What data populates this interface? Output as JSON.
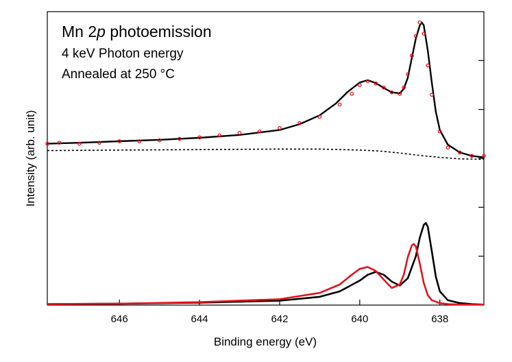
{
  "chart_data": {
    "type": "scatter",
    "title": {
      "prefix": "Mn 2",
      "italic": "p",
      "suffix": " photoemission"
    },
    "annotations": [
      "4 keV Photon energy",
      "Annealed at 250 °C"
    ],
    "xlabel": "Binding energy (eV)",
    "ylabel": "Intensity (arb. unit)",
    "xlim": [
      647.8,
      636.9
    ],
    "ylim": [
      0,
      6
    ],
    "x_reversed": true,
    "x_ticks": [
      646,
      644,
      642,
      640,
      638
    ],
    "x_tick_labels": [
      "646",
      "644",
      "642",
      "640",
      "638"
    ],
    "y_ticks": [
      1,
      2,
      3,
      4,
      5
    ],
    "y_tick_labels_shown": false,
    "grid": false,
    "colors": {
      "data_points": "#e0141e",
      "fit": "#000000",
      "background": "#000000",
      "component_black": "#000000",
      "component_red": "#e0141e"
    },
    "series": [
      {
        "kind": "points",
        "x": [
          647.8,
          647.5,
          647.0,
          646.5,
          646.0,
          645.5,
          645.0,
          644.5,
          644.0,
          643.5,
          643.0,
          642.5,
          642.0,
          641.5,
          641.0,
          640.5,
          640.2,
          640.0,
          639.8,
          639.6,
          639.4,
          639.2,
          639.0,
          638.9,
          638.8,
          638.7,
          638.6,
          638.5,
          638.4,
          638.3,
          638.2,
          638.0,
          637.8,
          637.5,
          637.2,
          636.9
        ],
        "y": [
          3.3,
          3.32,
          3.3,
          3.32,
          3.35,
          3.35,
          3.37,
          3.4,
          3.43,
          3.47,
          3.52,
          3.55,
          3.62,
          3.72,
          3.85,
          4.1,
          4.32,
          4.5,
          4.58,
          4.53,
          4.45,
          4.35,
          4.32,
          4.45,
          4.72,
          5.1,
          5.5,
          5.78,
          5.55,
          4.9,
          4.3,
          3.55,
          3.22,
          3.12,
          3.05,
          3.05
        ]
      },
      {
        "kind": "fit",
        "x": [
          647.8,
          647.0,
          646.0,
          645.0,
          644.0,
          643.0,
          642.0,
          641.5,
          641.0,
          640.6,
          640.3,
          640.0,
          639.8,
          639.6,
          639.4,
          639.2,
          639.0,
          638.9,
          638.8,
          638.7,
          638.6,
          638.5,
          638.45,
          638.4,
          638.3,
          638.2,
          638.1,
          638.0,
          637.8,
          637.5,
          637.2,
          636.9
        ],
        "y": [
          3.3,
          3.32,
          3.35,
          3.38,
          3.42,
          3.48,
          3.58,
          3.7,
          3.88,
          4.12,
          4.36,
          4.55,
          4.6,
          4.54,
          4.44,
          4.35,
          4.33,
          4.42,
          4.65,
          5.05,
          5.45,
          5.72,
          5.78,
          5.72,
          5.2,
          4.55,
          3.95,
          3.58,
          3.28,
          3.12,
          3.05,
          3.02
        ]
      },
      {
        "kind": "background",
        "x": [
          647.8,
          646.0,
          644.0,
          642.0,
          641.0,
          640.0,
          639.5,
          639.0,
          638.5,
          638.0,
          637.5,
          636.9
        ],
        "y": [
          3.16,
          3.17,
          3.18,
          3.19,
          3.19,
          3.17,
          3.15,
          3.11,
          3.06,
          3.02,
          2.99,
          2.98
        ]
      },
      {
        "kind": "component",
        "x": [
          647.8,
          646.0,
          644.0,
          642.0,
          641.0,
          640.5,
          640.0,
          639.8,
          639.6,
          639.4,
          639.2,
          639.0,
          638.8,
          638.6,
          638.5,
          638.4,
          638.35,
          638.3,
          638.2,
          638.1,
          638.0,
          637.8,
          637.5,
          637.2,
          636.9
        ],
        "y": [
          0.02,
          0.03,
          0.05,
          0.09,
          0.17,
          0.28,
          0.5,
          0.62,
          0.68,
          0.62,
          0.48,
          0.4,
          0.55,
          1.0,
          1.38,
          1.64,
          1.68,
          1.6,
          1.1,
          0.58,
          0.28,
          0.1,
          0.04,
          0.02,
          0.01
        ]
      },
      {
        "kind": "component",
        "x": [
          647.8,
          646.0,
          644.0,
          642.0,
          641.0,
          640.5,
          640.2,
          640.0,
          639.8,
          639.6,
          639.4,
          639.2,
          639.0,
          638.9,
          638.8,
          638.7,
          638.65,
          638.6,
          638.5,
          638.4,
          638.3,
          638.2,
          638.0,
          637.8,
          637.5,
          636.9
        ],
        "y": [
          0.02,
          0.03,
          0.06,
          0.12,
          0.25,
          0.42,
          0.62,
          0.74,
          0.78,
          0.7,
          0.52,
          0.35,
          0.42,
          0.62,
          0.98,
          1.22,
          1.25,
          1.2,
          0.85,
          0.45,
          0.2,
          0.1,
          0.04,
          0.02,
          0.01,
          0.01
        ]
      }
    ]
  }
}
